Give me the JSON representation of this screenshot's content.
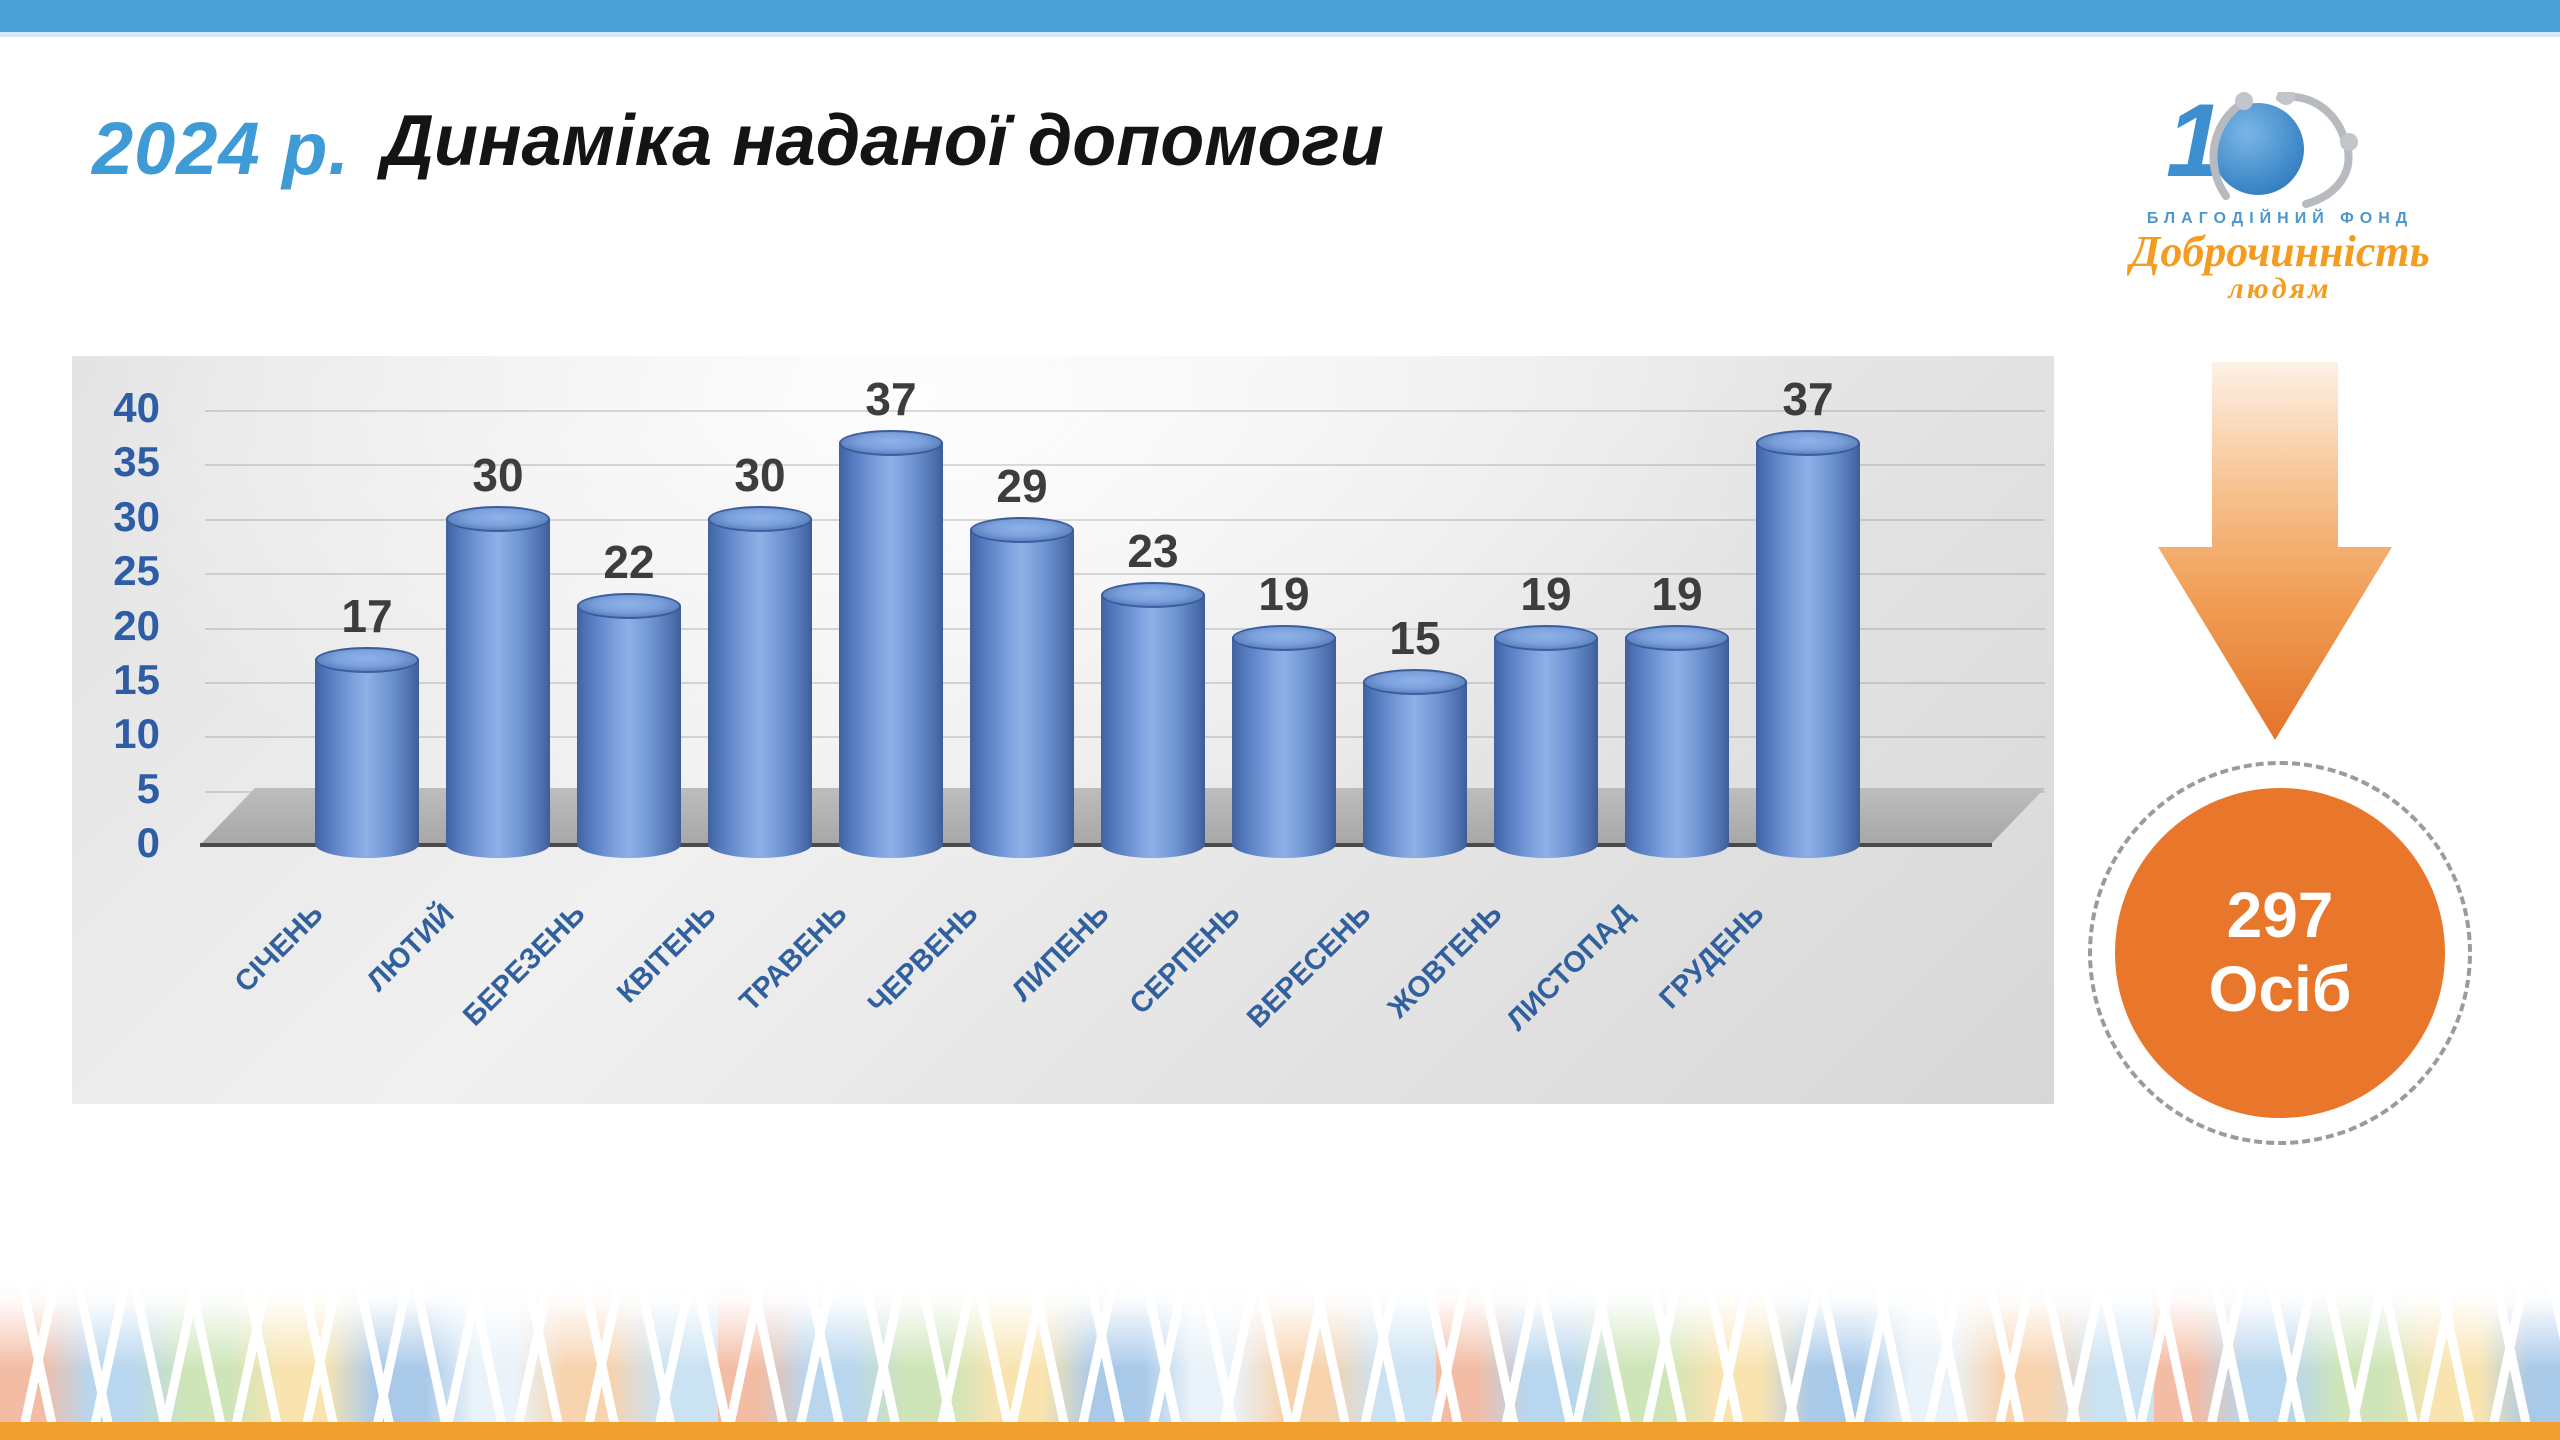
{
  "slide": {
    "year_label": "2024 р.",
    "title": "Динаміка наданої допомоги"
  },
  "logo": {
    "anniversary_number": "10",
    "org_type": "БЛАГОДІЙНИЙ ФОНД",
    "org_name_line1": "Доброчинність",
    "org_name_line2": "людям"
  },
  "summary": {
    "value": "297",
    "unit": "Осіб"
  },
  "theme": {
    "top_bar_blue": "#4BA0D8",
    "title_blue": "#3E9BD5",
    "axis_label_blue": "#2E5DA6",
    "month_label_blue": "#31609F",
    "bar_blue": "#5B84CC",
    "value_label_gray": "#3D3D3D",
    "arrow_orange": "#E8762B",
    "circle_orange": "#E8762B",
    "dashed_ring_gray": "#9B9B9B",
    "bottom_bar_orange": "#EFA02F",
    "logo_orange": "#F59C20",
    "logo_blue": "#3E8FD0"
  },
  "chart_data": {
    "type": "bar",
    "title": "Динаміка наданої допомоги",
    "categories": [
      "СІЧЕНЬ",
      "ЛЮТИЙ",
      "БЕРЕЗЕНЬ",
      "КВІТЕНЬ",
      "ТРАВЕНЬ",
      "ЧЕРВЕНЬ",
      "ЛИПЕНЬ",
      "СЕРПЕНЬ",
      "ВЕРЕСЕНЬ",
      "ЖОВТЕНЬ",
      "ЛИСТОПАД",
      "ГРУДЕНЬ"
    ],
    "values": [
      17,
      30,
      22,
      30,
      37,
      29,
      23,
      19,
      15,
      19,
      19,
      37
    ],
    "xlabel": "",
    "ylabel": "",
    "ylim": [
      0,
      40
    ],
    "ytick_step": 5,
    "grid": true,
    "legend": false,
    "bar_style": "3d-cylinder"
  }
}
